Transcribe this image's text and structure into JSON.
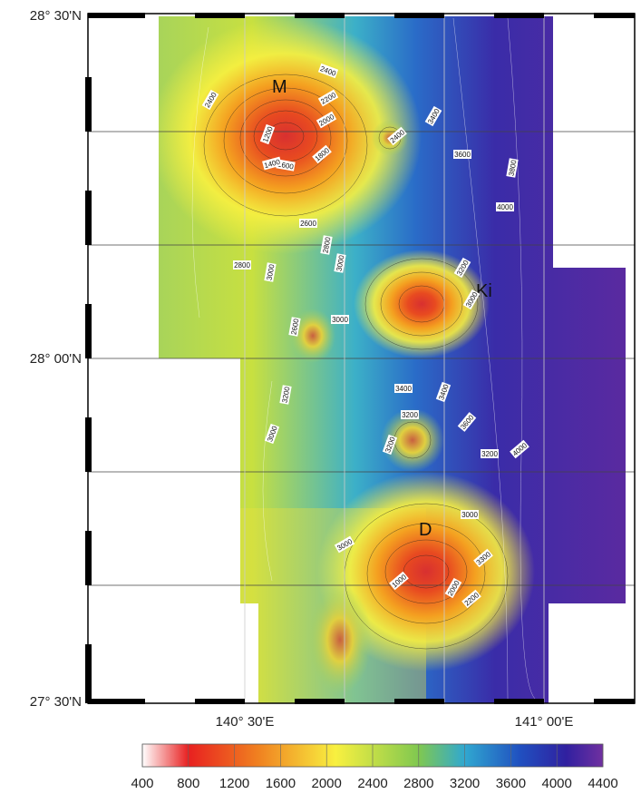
{
  "map": {
    "lat_labels": [
      "28° 30'N",
      "28° 00'N",
      "27° 30'N"
    ],
    "lon_labels": [
      "140° 30'E",
      "141° 00'E"
    ],
    "features": [
      "M",
      "Ki",
      "D"
    ],
    "contour_labels": [
      "2400",
      "2400",
      "2200",
      "2000",
      "1800",
      "1600",
      "1400",
      "1200",
      "2400",
      "3400",
      "3600",
      "3800",
      "4000",
      "2600",
      "2800",
      "3000",
      "2800",
      "3000",
      "3200",
      "3000",
      "2600",
      "3000",
      "3400",
      "3200",
      "3400",
      "3200",
      "3600",
      "4000",
      "3200",
      "3000",
      "3200",
      "1000",
      "2000",
      "2200",
      "3000",
      "3300",
      "3000"
    ],
    "colorbar": {
      "ticks": [
        400,
        800,
        1200,
        1600,
        2000,
        2400,
        2800,
        3200,
        3600,
        4000,
        4400
      ]
    }
  }
}
